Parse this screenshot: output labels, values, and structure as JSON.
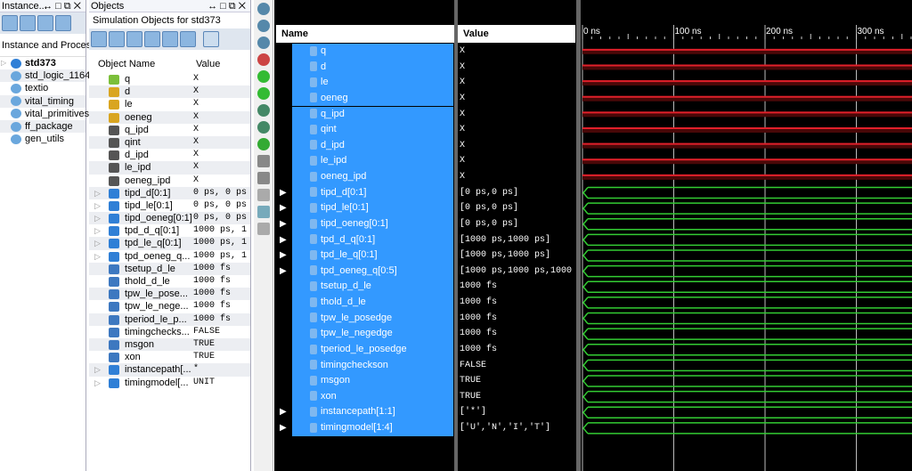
{
  "instances": {
    "title": "Instance...",
    "column": "Instance and Process",
    "items": [
      "std373",
      "std_logic_1164",
      "textio",
      "vital_timing",
      "vital_primitives",
      "ff_package",
      "gen_utils"
    ]
  },
  "objects": {
    "title": "Objects",
    "subtitle": "Simulation Objects for std373",
    "col_name": "Object Name",
    "col_value": "Value",
    "items": [
      {
        "name": "q",
        "value": "X",
        "kind": "out"
      },
      {
        "name": "d",
        "value": "X",
        "kind": "in"
      },
      {
        "name": "le",
        "value": "X",
        "kind": "in"
      },
      {
        "name": "oeneg",
        "value": "X",
        "kind": "in"
      },
      {
        "name": "q_ipd",
        "value": "X",
        "kind": "sig"
      },
      {
        "name": "qint",
        "value": "X",
        "kind": "sig"
      },
      {
        "name": "d_ipd",
        "value": "X",
        "kind": "sig"
      },
      {
        "name": "le_ipd",
        "value": "X",
        "kind": "sig"
      },
      {
        "name": "oeneg_ipd",
        "value": "X",
        "kind": "sig"
      },
      {
        "name": "tipd_d[0:1]",
        "value": "0 ps, 0 ps",
        "kind": "arr"
      },
      {
        "name": "tipd_le[0:1]",
        "value": "0 ps, 0 ps",
        "kind": "arr"
      },
      {
        "name": "tipd_oeneg[0:1]",
        "value": "0 ps, 0 ps",
        "kind": "arr"
      },
      {
        "name": "tpd_d_q[0:1]",
        "value": "1000 ps, 1",
        "kind": "arr"
      },
      {
        "name": "tpd_le_q[0:1]",
        "value": "1000 ps, 1",
        "kind": "arr"
      },
      {
        "name": "tpd_oeneg_q...",
        "value": "1000 ps, 1",
        "kind": "arr"
      },
      {
        "name": "tsetup_d_le",
        "value": "1000 fs",
        "kind": "const"
      },
      {
        "name": "thold_d_le",
        "value": "1000 fs",
        "kind": "const"
      },
      {
        "name": "tpw_le_pose...",
        "value": "1000 fs",
        "kind": "const"
      },
      {
        "name": "tpw_le_nege...",
        "value": "1000 fs",
        "kind": "const"
      },
      {
        "name": "tperiod_le_p...",
        "value": "1000 fs",
        "kind": "const"
      },
      {
        "name": "timingchecks...",
        "value": "FALSE",
        "kind": "const"
      },
      {
        "name": "msgon",
        "value": "TRUE",
        "kind": "const"
      },
      {
        "name": "xon",
        "value": "TRUE",
        "kind": "const"
      },
      {
        "name": "instancepath[...",
        "value": "*",
        "kind": "arr"
      },
      {
        "name": "timingmodel[...",
        "value": "UNIT",
        "kind": "arr"
      }
    ]
  },
  "wave": {
    "col_name": "Name",
    "col_value": "Value",
    "ticks": [
      "0 ns",
      "100 ns",
      "200 ns",
      "300 ns"
    ],
    "rows": [
      {
        "name": "q",
        "value": "X"
      },
      {
        "name": "d",
        "value": "X"
      },
      {
        "name": "le",
        "value": "X"
      },
      {
        "name": "oeneg",
        "value": "X"
      },
      {
        "name": "q_ipd",
        "value": "X"
      },
      {
        "name": "qint",
        "value": "X"
      },
      {
        "name": "d_ipd",
        "value": "X"
      },
      {
        "name": "le_ipd",
        "value": "X"
      },
      {
        "name": "oeneg_ipd",
        "value": "X"
      },
      {
        "name": "tipd_d[0:1]",
        "value": "[0 ps,0 ps]",
        "expand": true
      },
      {
        "name": "tipd_le[0:1]",
        "value": "[0 ps,0 ps]",
        "expand": true
      },
      {
        "name": "tipd_oeneg[0:1]",
        "value": "[0 ps,0 ps]",
        "expand": true
      },
      {
        "name": "tpd_d_q[0:1]",
        "value": "[1000 ps,1000 ps]",
        "expand": true
      },
      {
        "name": "tpd_le_q[0:1]",
        "value": "[1000 ps,1000 ps]",
        "expand": true
      },
      {
        "name": "tpd_oeneg_q[0:5]",
        "value": "[1000 ps,1000 ps,1000",
        "expand": true
      },
      {
        "name": "tsetup_d_le",
        "value": "1000 fs"
      },
      {
        "name": "thold_d_le",
        "value": "1000 fs"
      },
      {
        "name": "tpw_le_posedge",
        "value": "1000 fs"
      },
      {
        "name": "tpw_le_negedge",
        "value": "1000 fs"
      },
      {
        "name": "tperiod_le_posedge",
        "value": "1000 fs"
      },
      {
        "name": "timingcheckson",
        "value": "FALSE"
      },
      {
        "name": "msgon",
        "value": "TRUE"
      },
      {
        "name": "xon",
        "value": "TRUE"
      },
      {
        "name": "instancepath[1:1]",
        "value": "['*']",
        "expand": true
      },
      {
        "name": "timingmodel[1:4]",
        "value": "['U','N','I','T']",
        "expand": true
      }
    ]
  },
  "colors": {
    "selection": "#3399ff",
    "x_wave": "#e0202a",
    "bus_wave": "#33cc33"
  }
}
